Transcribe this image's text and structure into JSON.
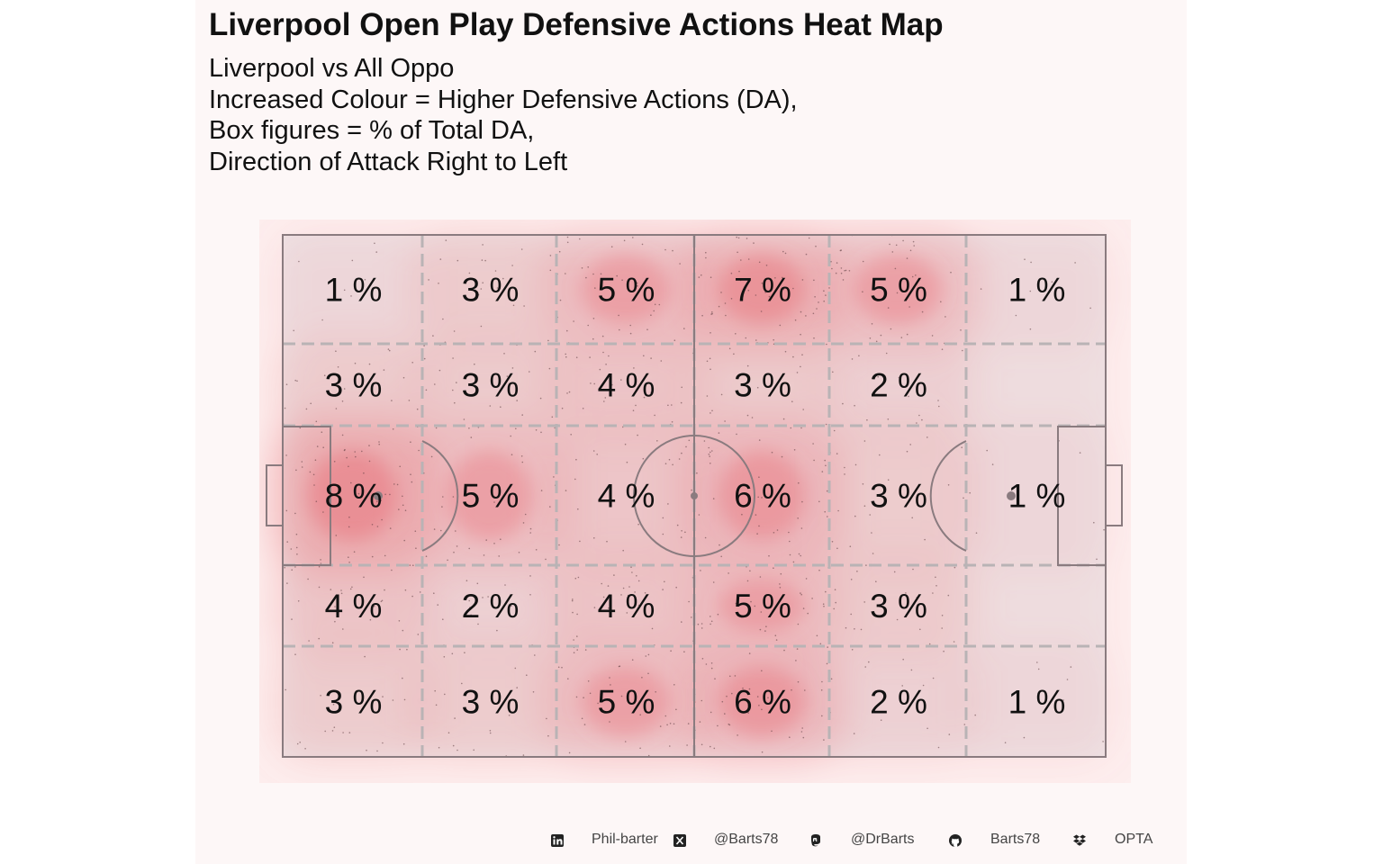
{
  "title": "Liverpool Open Play Defensive Actions Heat Map",
  "subtitle_lines": [
    "Liverpool vs All Oppo",
    "Increased Colour = Higher Defensive Actions (DA),",
    "Box figures = % of Total DA,",
    "Direction of Attack Right to Left"
  ],
  "chart_data": {
    "type": "heatmap",
    "title": "Liverpool Open Play Defensive Actions Heat Map",
    "value_unit": "%",
    "columns": 6,
    "rows": 5,
    "grid": [
      [
        "1 %",
        "3 %",
        "5 %",
        "7 %",
        "5 %",
        "1 %"
      ],
      [
        "3 %",
        "3 %",
        "4 %",
        "3 %",
        "2 %",
        ""
      ],
      [
        "8 %",
        "5 %",
        "4 %",
        "6 %",
        "3 %",
        "1 %"
      ],
      [
        "4 %",
        "2 %",
        "4 %",
        "5 %",
        "3 %",
        ""
      ],
      [
        "3 %",
        "3 %",
        "5 %",
        "6 %",
        "2 %",
        "1 %"
      ]
    ],
    "values": [
      [
        1,
        3,
        5,
        7,
        5,
        1
      ],
      [
        3,
        3,
        4,
        3,
        2,
        0
      ],
      [
        8,
        5,
        4,
        6,
        3,
        1
      ],
      [
        4,
        2,
        4,
        5,
        3,
        0
      ],
      [
        3,
        3,
        5,
        6,
        2,
        1
      ]
    ],
    "colors": {
      "heat": "#e8737a",
      "pitch_line": "#8a7b7f",
      "zone_line": "#b9b3b5",
      "panel": "#fdf7f7",
      "plot_bg": "#fdeeee"
    }
  },
  "footer": {
    "items": [
      {
        "icon": "linkedin-icon",
        "label": "Phil-barter"
      },
      {
        "icon": "x-icon",
        "label": "@Barts78"
      },
      {
        "icon": "mastodon-icon",
        "label": "@DrBarts"
      },
      {
        "icon": "github-icon",
        "label": "Barts78"
      },
      {
        "icon": "dropbox-icon",
        "label": "OPTA"
      }
    ]
  }
}
